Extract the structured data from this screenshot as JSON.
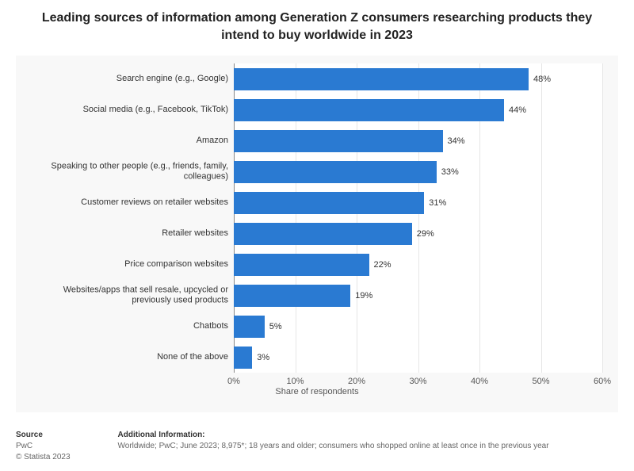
{
  "title": "Leading sources of information among Generation Z consumers researching products they intend to buy worldwide in 2023",
  "chart": {
    "type": "bar_horizontal",
    "categories": [
      "Search engine (e.g., Google)",
      "Social media (e.g., Facebook, TikTok)",
      "Amazon",
      "Speaking to other people (e.g., friends, family, colleagues)",
      "Customer reviews on retailer websites",
      "Retailer websites",
      "Price comparison websites",
      "Websites/apps that sell resale, upcycled or previously used products",
      "Chatbots",
      "None of the above"
    ],
    "values": [
      48,
      44,
      34,
      33,
      31,
      29,
      22,
      19,
      5,
      3
    ],
    "value_suffix": "%",
    "bar_color": "#2a7ad2",
    "xaxis": {
      "label": "Share of respondents",
      "min": 0,
      "max": 60,
      "tick_step": 10,
      "tick_suffix": "%"
    },
    "grid_color": "#e6e6e6",
    "plot_bg": "#ffffff",
    "panel_bg": "#f8f8f8",
    "label_fontsize": 11,
    "title_fontsize": 16
  },
  "footer": {
    "source_heading": "Source",
    "source_lines": [
      "PwC",
      "© Statista 2023"
    ],
    "info_heading": "Additional Information:",
    "info_text": "Worldwide; PwC; June 2023; 8,975*; 18 years and older; consumers who shopped online at least once in the previous year"
  }
}
